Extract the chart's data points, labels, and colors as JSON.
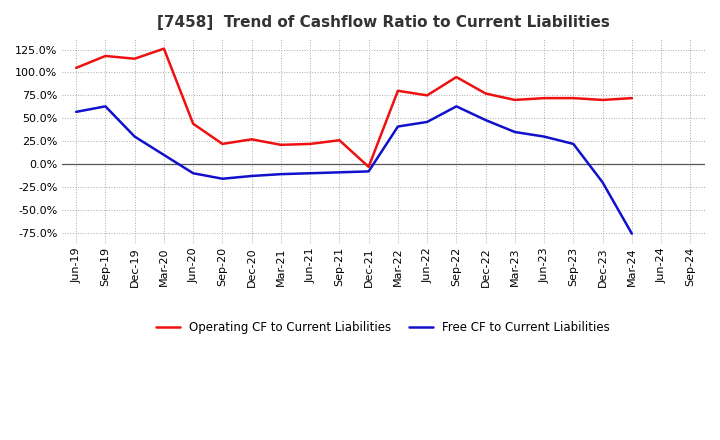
{
  "title": "[7458]  Trend of Cashflow Ratio to Current Liabilities",
  "x_labels": [
    "Jun-19",
    "Sep-19",
    "Dec-19",
    "Mar-20",
    "Jun-20",
    "Sep-20",
    "Dec-20",
    "Mar-21",
    "Jun-21",
    "Sep-21",
    "Dec-21",
    "Mar-22",
    "Jun-22",
    "Sep-22",
    "Dec-22",
    "Mar-23",
    "Jun-23",
    "Sep-23",
    "Dec-23",
    "Mar-24",
    "Jun-24",
    "Sep-24"
  ],
  "operating_cf": [
    105,
    118,
    115,
    126,
    44,
    22,
    27,
    21,
    22,
    26,
    -3,
    80,
    75,
    95,
    77,
    70,
    72,
    72,
    70,
    72,
    null,
    null
  ],
  "free_cf": [
    57,
    63,
    30,
    10,
    -10,
    -16,
    -13,
    -11,
    -10,
    -9,
    -8,
    41,
    46,
    63,
    48,
    35,
    30,
    22,
    -20,
    -76,
    null,
    null
  ],
  "operating_color": "#EE1111",
  "free_color": "#1111CC",
  "ylim": [
    -87.5,
    137.5
  ],
  "yticks": [
    -75,
    -50,
    -25,
    0,
    25,
    50,
    75,
    100,
    125
  ],
  "background_color": "#FFFFFF",
  "grid_color": "#AAAAAA",
  "title_color": "#333333",
  "legend_operating": "Operating CF to Current Liabilities",
  "legend_free": "Free CF to Current Liabilities",
  "title_fontsize": 11,
  "tick_fontsize": 8,
  "legend_fontsize": 8.5
}
